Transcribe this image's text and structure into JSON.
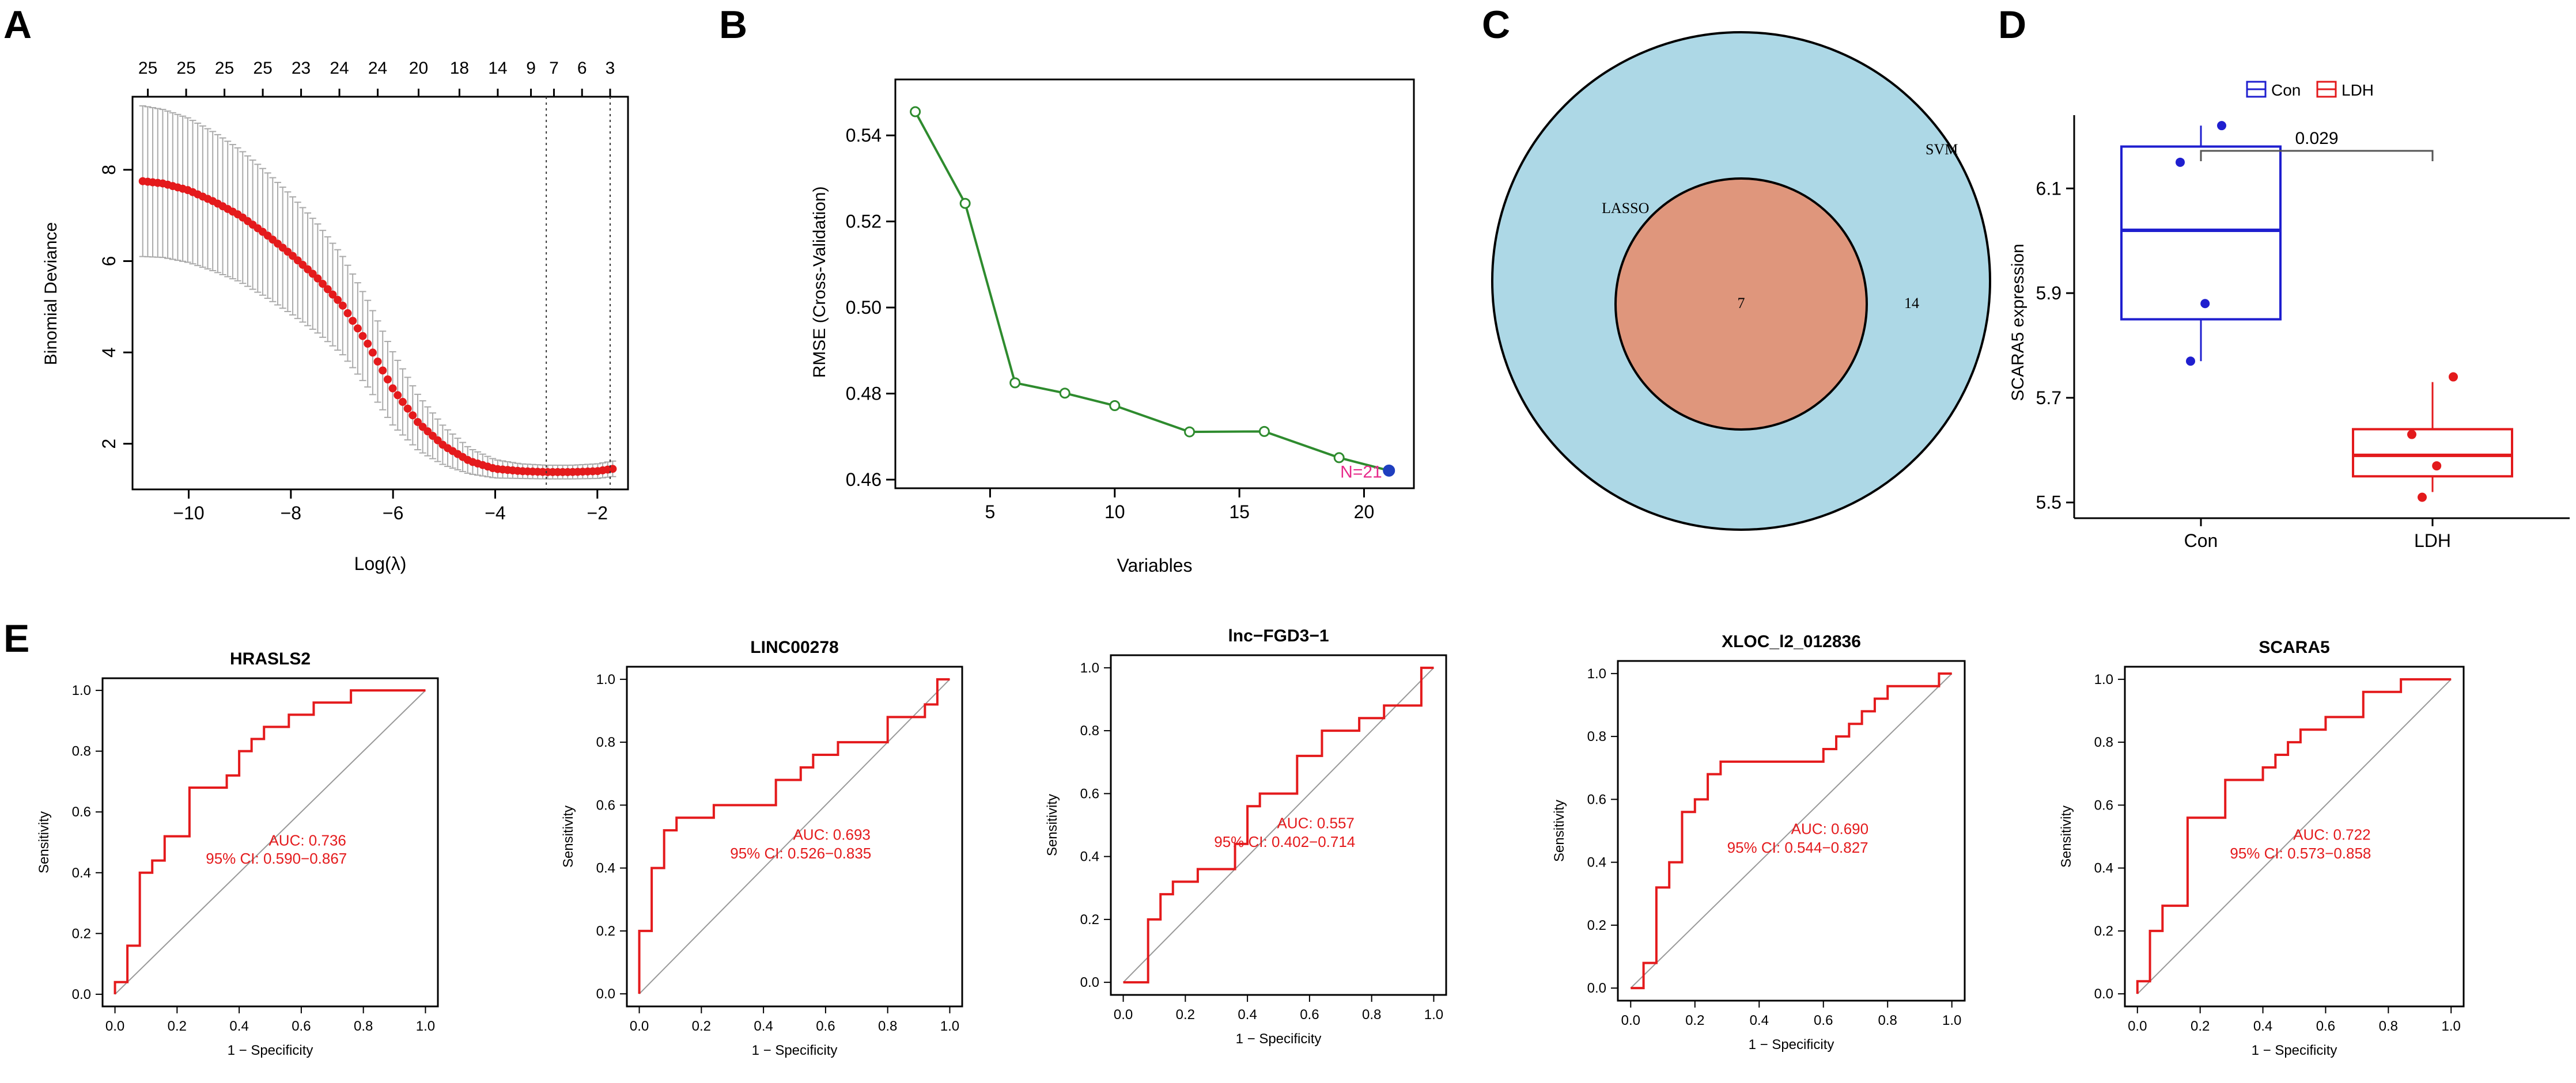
{
  "colors": {
    "lasso_red": "#e41a1c",
    "rfe_green": "#2e8b2e",
    "rfe_last": "#1f3fbf",
    "svm_fill": "#add8e6",
    "lasso_fill": "#df967c",
    "con_blue": "#1f1fcf",
    "ldh_red": "#e31a1c",
    "roc_red": "#e41a1c",
    "grey": "#999999"
  },
  "panels": {
    "A": {
      "letter": "A"
    },
    "B": {
      "letter": "B"
    },
    "C": {
      "letter": "C"
    },
    "D": {
      "letter": "D"
    },
    "E": {
      "letter": "E"
    }
  },
  "chart_data": [
    {
      "id": "A",
      "type": "line",
      "title": "",
      "xlabel": "Log(λ)",
      "ylabel": "Binomial Deviance",
      "xlim": [
        -11.1,
        -1.4
      ],
      "ylim": [
        1.0,
        9.6
      ],
      "xticks": [
        -10,
        -8,
        -6,
        -4,
        -2
      ],
      "xtick_labels": [
        "−10",
        "−8",
        "−6",
        "−4",
        "−2"
      ],
      "yticks": [
        2,
        4,
        6,
        8
      ],
      "ytick_labels": [
        "2",
        "4",
        "6",
        "8"
      ],
      "top_axis_labels": [
        "25",
        "25",
        "25",
        "25",
        "23",
        "24",
        "24",
        "20",
        "18",
        "14",
        "9",
        "7",
        "6",
        "3"
      ],
      "top_axis_x": [
        -10.8,
        -10.05,
        -9.3,
        -8.55,
        -7.8,
        -7.05,
        -6.3,
        -5.5,
        -4.7,
        -3.95,
        -3.3,
        -2.85,
        -2.3,
        -1.75
      ],
      "lambda_min": -3.0,
      "lambda_1se": -1.75,
      "curve_x": [
        -10.9,
        -10.5,
        -10.0,
        -9.5,
        -9.0,
        -8.5,
        -8.0,
        -7.5,
        -7.0,
        -6.5,
        -6.0,
        -5.5,
        -5.0,
        -4.5,
        -4.0,
        -3.5,
        -3.0,
        -2.5,
        -2.0,
        -1.7
      ],
      "curve_y": [
        7.75,
        7.7,
        7.55,
        7.3,
        7.0,
        6.6,
        6.15,
        5.65,
        5.05,
        4.2,
        3.2,
        2.45,
        1.95,
        1.62,
        1.45,
        1.4,
        1.38,
        1.38,
        1.4,
        1.45
      ],
      "curve_err": [
        1.65,
        1.62,
        1.58,
        1.52,
        1.45,
        1.38,
        1.3,
        1.2,
        1.08,
        0.95,
        0.8,
        0.6,
        0.42,
        0.28,
        0.2,
        0.16,
        0.15,
        0.15,
        0.16,
        0.17
      ]
    },
    {
      "id": "B",
      "type": "line",
      "xlabel": "Variables",
      "ylabel": "RMSE (Cross-Validation)",
      "xlim": [
        1.2,
        22.0
      ],
      "ylim": [
        0.458,
        0.553
      ],
      "xticks": [
        5,
        10,
        15,
        20
      ],
      "xtick_labels": [
        "5",
        "10",
        "15",
        "20"
      ],
      "yticks": [
        0.46,
        0.48,
        0.5,
        0.52,
        0.54
      ],
      "ytick_labels": [
        "0.46",
        "0.48",
        "0.50",
        "0.52",
        "0.54"
      ],
      "x": [
        2,
        4,
        6,
        8,
        10,
        13,
        16,
        19,
        21
      ],
      "y": [
        0.5455,
        0.5242,
        0.4825,
        0.4801,
        0.4772,
        0.4711,
        0.4712,
        0.4651,
        0.4621
      ],
      "annotation": "N=21"
    },
    {
      "id": "C",
      "type": "venn",
      "sets": [
        {
          "name": "SVM",
          "only_count": "14"
        },
        {
          "name": "LASSO",
          "only_count": ""
        }
      ],
      "intersection": "7"
    },
    {
      "id": "D",
      "type": "boxplot",
      "ylabel": "SCARA5 expression",
      "categories": [
        "Con",
        "LDH"
      ],
      "legend": [
        "Con",
        "LDH"
      ],
      "ylim": [
        5.47,
        6.24
      ],
      "yticks": [
        5.5,
        5.7,
        5.9,
        6.1
      ],
      "ytick_labels": [
        "5.5",
        "5.7",
        "5.9",
        "6.1"
      ],
      "boxes": [
        {
          "name": "Con",
          "min": 5.77,
          "q1": 5.85,
          "median": 6.02,
          "q3": 6.18,
          "max": 6.22,
          "points": [
            6.22,
            6.15,
            5.88,
            5.77
          ]
        },
        {
          "name": "LDH",
          "min": 5.52,
          "q1": 5.55,
          "median": 5.59,
          "q3": 5.64,
          "max": 5.73,
          "points": [
            5.74,
            5.63,
            5.57,
            5.51
          ]
        }
      ],
      "p_value": "0.029"
    },
    {
      "id": "E",
      "type": "roc",
      "xlabel": "1 − Specificity",
      "ylabel": "Sensitivity",
      "ticks": [
        0.0,
        0.2,
        0.4,
        0.6,
        0.8,
        1.0
      ],
      "tick_labels": [
        "0.0",
        "0.2",
        "0.4",
        "0.6",
        "0.8",
        "1.0"
      ],
      "curves": [
        {
          "title": "HRASLS2",
          "auc": "AUC: 0.736",
          "ci": "95% CI: 0.590−0.867",
          "fpr": [
            0.0,
            0.0,
            0.04,
            0.04,
            0.08,
            0.08,
            0.12,
            0.12,
            0.16,
            0.16,
            0.24,
            0.24,
            0.36,
            0.36,
            0.4,
            0.4,
            0.44,
            0.44,
            0.48,
            0.48,
            0.56,
            0.56,
            0.64,
            0.64,
            0.76,
            0.76,
            0.84,
            0.84,
            1.0
          ],
          "tpr": [
            0.0,
            0.04,
            0.04,
            0.16,
            0.16,
            0.4,
            0.4,
            0.44,
            0.44,
            0.52,
            0.52,
            0.68,
            0.68,
            0.72,
            0.72,
            0.8,
            0.8,
            0.84,
            0.84,
            0.88,
            0.88,
            0.92,
            0.92,
            0.96,
            0.96,
            1.0,
            1.0,
            1.0,
            1.0
          ]
        },
        {
          "title": "LINC00278",
          "auc": "AUC: 0.693",
          "ci": "95% CI: 0.526−0.835",
          "fpr": [
            0.0,
            0.0,
            0.04,
            0.04,
            0.08,
            0.08,
            0.12,
            0.12,
            0.24,
            0.24,
            0.44,
            0.44,
            0.52,
            0.52,
            0.56,
            0.56,
            0.64,
            0.64,
            0.8,
            0.8,
            0.92,
            0.92,
            0.96,
            0.96,
            1.0
          ],
          "tpr": [
            0.0,
            0.2,
            0.2,
            0.4,
            0.4,
            0.52,
            0.52,
            0.56,
            0.56,
            0.6,
            0.6,
            0.68,
            0.68,
            0.72,
            0.72,
            0.76,
            0.76,
            0.8,
            0.8,
            0.88,
            0.88,
            0.92,
            0.92,
            1.0,
            1.0
          ]
        },
        {
          "title": "lnc−FGD3−1",
          "auc": "AUC: 0.557",
          "ci": "95% CI: 0.402−0.714",
          "fpr": [
            0.0,
            0.08,
            0.08,
            0.12,
            0.12,
            0.16,
            0.16,
            0.24,
            0.24,
            0.36,
            0.36,
            0.4,
            0.4,
            0.44,
            0.44,
            0.56,
            0.56,
            0.64,
            0.64,
            0.76,
            0.76,
            0.84,
            0.84,
            0.96,
            0.96,
            1.0
          ],
          "tpr": [
            0.0,
            0.0,
            0.2,
            0.2,
            0.28,
            0.28,
            0.32,
            0.32,
            0.36,
            0.36,
            0.44,
            0.44,
            0.56,
            0.56,
            0.6,
            0.6,
            0.72,
            0.72,
            0.8,
            0.8,
            0.84,
            0.84,
            0.88,
            0.88,
            1.0,
            1.0
          ]
        },
        {
          "title": "XLOC_l2_012836",
          "auc": "AUC: 0.690",
          "ci": "95% CI: 0.544−0.827",
          "fpr": [
            0.0,
            0.04,
            0.04,
            0.08,
            0.08,
            0.12,
            0.12,
            0.16,
            0.16,
            0.2,
            0.2,
            0.24,
            0.24,
            0.28,
            0.28,
            0.36,
            0.36,
            0.6,
            0.6,
            0.64,
            0.64,
            0.68,
            0.68,
            0.72,
            0.72,
            0.76,
            0.76,
            0.8,
            0.8,
            0.96,
            0.96,
            1.0
          ],
          "tpr": [
            0.0,
            0.0,
            0.08,
            0.08,
            0.32,
            0.32,
            0.4,
            0.4,
            0.56,
            0.56,
            0.6,
            0.6,
            0.68,
            0.68,
            0.72,
            0.72,
            0.72,
            0.72,
            0.76,
            0.76,
            0.8,
            0.8,
            0.84,
            0.84,
            0.88,
            0.88,
            0.92,
            0.92,
            0.96,
            0.96,
            1.0,
            1.0
          ]
        },
        {
          "title": "SCARA5",
          "auc": "AUC: 0.722",
          "ci": "95% CI: 0.573−0.858",
          "fpr": [
            0.0,
            0.0,
            0.04,
            0.04,
            0.08,
            0.08,
            0.16,
            0.16,
            0.28,
            0.28,
            0.4,
            0.4,
            0.44,
            0.44,
            0.48,
            0.48,
            0.52,
            0.52,
            0.6,
            0.6,
            0.72,
            0.72,
            0.84,
            0.84,
            1.0
          ],
          "tpr": [
            0.0,
            0.04,
            0.04,
            0.2,
            0.2,
            0.28,
            0.28,
            0.56,
            0.56,
            0.68,
            0.68,
            0.72,
            0.72,
            0.76,
            0.76,
            0.8,
            0.8,
            0.84,
            0.84,
            0.88,
            0.88,
            0.96,
            0.96,
            1.0,
            1.0
          ]
        }
      ]
    }
  ]
}
